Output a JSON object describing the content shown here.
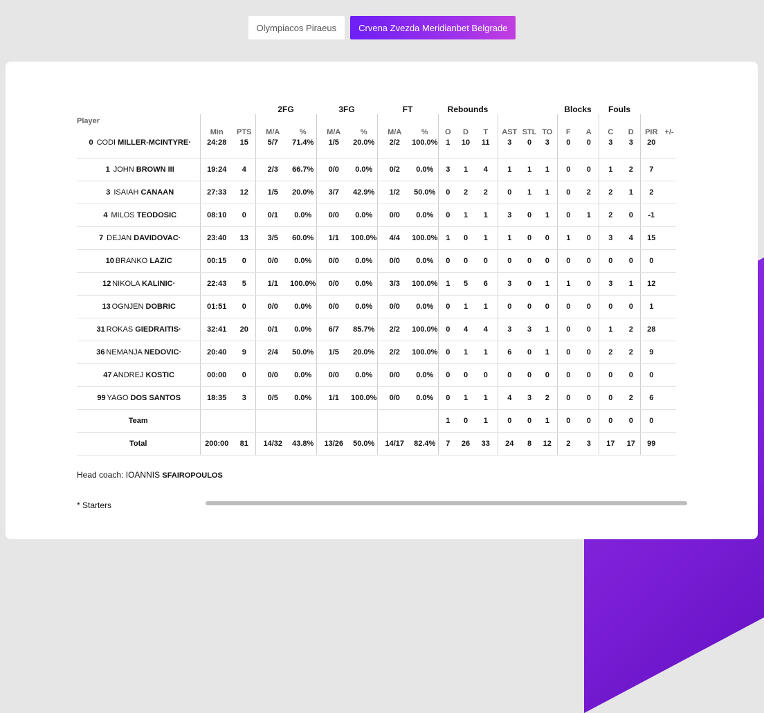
{
  "tabs": [
    {
      "label": "Olympiacos Piraeus",
      "active": false
    },
    {
      "label": "Crvena Zvezda Meridianbet Belgrade",
      "active": true
    }
  ],
  "groups": [
    "2FG",
    "3FG",
    "FT",
    "Rebounds",
    "Blocks",
    "Fouls"
  ],
  "headers": {
    "player": "Player",
    "cols": [
      "Min",
      "PTS",
      "M/A",
      "%",
      "M/A",
      "%",
      "M/A",
      "%",
      "O",
      "D",
      "T",
      "AST",
      "STL",
      "TO",
      "F",
      "A",
      "C",
      "D",
      "PIR",
      "+/-"
    ]
  },
  "players": [
    {
      "num": "0",
      "first": "CODI",
      "last": "MILLER-MCINTYRE·",
      "stats": [
        "24:28",
        "15",
        "5/7",
        "71.4%",
        "1/5",
        "20.0%",
        "2/2",
        "100.0%",
        "1",
        "10",
        "11",
        "3",
        "0",
        "3",
        "0",
        "0",
        "3",
        "3",
        "20",
        ""
      ]
    },
    {
      "num": "1",
      "first": "JOHN",
      "last": "BROWN III",
      "stats": [
        "19:24",
        "4",
        "2/3",
        "66.7%",
        "0/0",
        "0.0%",
        "0/2",
        "0.0%",
        "3",
        "1",
        "4",
        "1",
        "1",
        "1",
        "0",
        "0",
        "1",
        "2",
        "7",
        ""
      ]
    },
    {
      "num": "3",
      "first": "ISAIAH",
      "last": "CANAAN",
      "stats": [
        "27:33",
        "12",
        "1/5",
        "20.0%",
        "3/7",
        "42.9%",
        "1/2",
        "50.0%",
        "0",
        "2",
        "2",
        "0",
        "1",
        "1",
        "0",
        "2",
        "2",
        "1",
        "2",
        ""
      ]
    },
    {
      "num": "4",
      "first": "MILOS",
      "last": "TEODOSIC",
      "stats": [
        "08:10",
        "0",
        "0/1",
        "0.0%",
        "0/0",
        "0.0%",
        "0/0",
        "0.0%",
        "0",
        "1",
        "1",
        "3",
        "0",
        "1",
        "0",
        "1",
        "2",
        "0",
        "-1",
        ""
      ]
    },
    {
      "num": "7",
      "first": "DEJAN",
      "last": "DAVIDOVAC·",
      "stats": [
        "23:40",
        "13",
        "3/5",
        "60.0%",
        "1/1",
        "100.0%",
        "4/4",
        "100.0%",
        "1",
        "0",
        "1",
        "1",
        "0",
        "0",
        "1",
        "0",
        "3",
        "4",
        "15",
        ""
      ]
    },
    {
      "num": "10",
      "first": "BRANKO",
      "last": "LAZIC",
      "stats": [
        "00:15",
        "0",
        "0/0",
        "0.0%",
        "0/0",
        "0.0%",
        "0/0",
        "0.0%",
        "0",
        "0",
        "0",
        "0",
        "0",
        "0",
        "0",
        "0",
        "0",
        "0",
        "0",
        ""
      ]
    },
    {
      "num": "12",
      "first": "NIKOLA",
      "last": "KALINIC·",
      "stats": [
        "22:43",
        "5",
        "1/1",
        "100.0%",
        "0/0",
        "0.0%",
        "3/3",
        "100.0%",
        "1",
        "5",
        "6",
        "3",
        "0",
        "1",
        "1",
        "0",
        "3",
        "1",
        "12",
        ""
      ]
    },
    {
      "num": "13",
      "first": "OGNJEN",
      "last": "DOBRIC",
      "stats": [
        "01:51",
        "0",
        "0/0",
        "0.0%",
        "0/0",
        "0.0%",
        "0/0",
        "0.0%",
        "0",
        "1",
        "1",
        "0",
        "0",
        "0",
        "0",
        "0",
        "0",
        "0",
        "1",
        ""
      ]
    },
    {
      "num": "31",
      "first": "ROKAS",
      "last": "GIEDRAITIS·",
      "stats": [
        "32:41",
        "20",
        "0/1",
        "0.0%",
        "6/7",
        "85.7%",
        "2/2",
        "100.0%",
        "0",
        "4",
        "4",
        "3",
        "3",
        "1",
        "0",
        "0",
        "1",
        "2",
        "28",
        ""
      ]
    },
    {
      "num": "36",
      "first": "NEMANJA",
      "last": "NEDOVIC·",
      "stats": [
        "20:40",
        "9",
        "2/4",
        "50.0%",
        "1/5",
        "20.0%",
        "2/2",
        "100.0%",
        "0",
        "1",
        "1",
        "6",
        "0",
        "1",
        "0",
        "0",
        "2",
        "2",
        "9",
        ""
      ]
    },
    {
      "num": "47",
      "first": "ANDREJ",
      "last": "KOSTIC",
      "stats": [
        "00:00",
        "0",
        "0/0",
        "0.0%",
        "0/0",
        "0.0%",
        "0/0",
        "0.0%",
        "0",
        "0",
        "0",
        "0",
        "0",
        "0",
        "0",
        "0",
        "0",
        "0",
        "0",
        ""
      ]
    },
    {
      "num": "99",
      "first": "YAGO",
      "last": "DOS SANTOS",
      "stats": [
        "18:35",
        "3",
        "0/5",
        "0.0%",
        "1/1",
        "100.0%",
        "0/0",
        "0.0%",
        "0",
        "1",
        "1",
        "4",
        "3",
        "2",
        "0",
        "0",
        "0",
        "2",
        "6",
        ""
      ]
    }
  ],
  "team": {
    "label": "Team",
    "stats": [
      "",
      "",
      "",
      "",
      "",
      "",
      "",
      "",
      "1",
      "0",
      "1",
      "0",
      "0",
      "1",
      "0",
      "0",
      "0",
      "0",
      "0",
      ""
    ]
  },
  "total": {
    "label": "Total",
    "stats": [
      "200:00",
      "81",
      "14/32",
      "43.8%",
      "13/26",
      "50.0%",
      "14/17",
      "82.4%",
      "7",
      "26",
      "33",
      "24",
      "8",
      "12",
      "2",
      "3",
      "17",
      "17",
      "99",
      ""
    ]
  },
  "coach": {
    "prefix": "Head coach:",
    "first": "IOANNIS",
    "last": "SFAIROPOULOS"
  },
  "starters_note": "* Starters",
  "colors": {
    "accent_start": "#6d1ff5",
    "accent_end": "#c23fe0",
    "deco": "#7b1fd6"
  }
}
